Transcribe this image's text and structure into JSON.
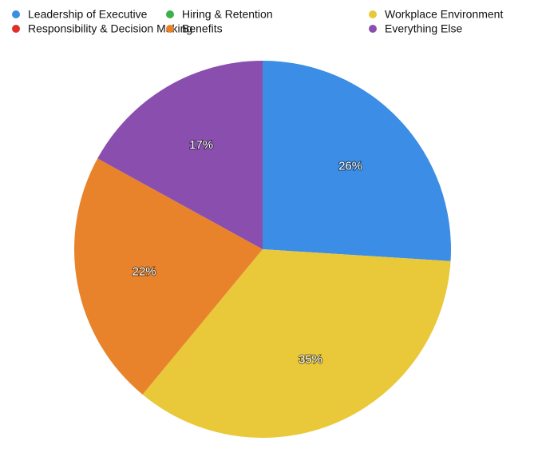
{
  "chart_data": {
    "type": "pie",
    "categories": [
      "Leadership of Executive",
      "Hiring & Retention",
      "Workplace Environment",
      "Responsibility & Decision Making",
      "Benefits",
      "Everything Else"
    ],
    "values": [
      26,
      0,
      35,
      0,
      22,
      17
    ],
    "value_labels": [
      "26%",
      null,
      "35%",
      null,
      "22%",
      "17%"
    ],
    "colors": [
      "#3b8de5",
      "#3cb04a",
      "#e9c93a",
      "#df2f28",
      "#e8832c",
      "#8a4fae"
    ],
    "legend": "top"
  }
}
